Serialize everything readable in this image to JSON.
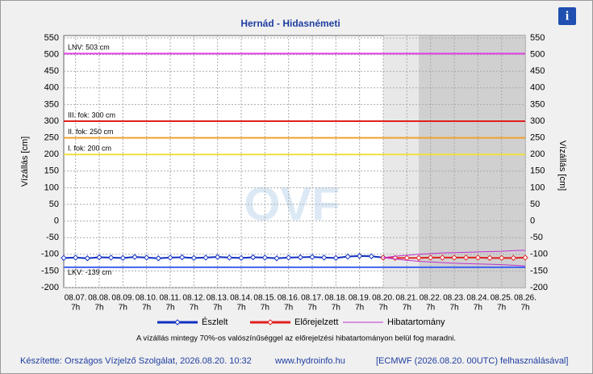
{
  "chart_data": {
    "type": "line",
    "title": "Hernád - Hidasnémeti",
    "y_label": "Vízállás [cm]",
    "ylim": [
      -200,
      550
    ],
    "yticks": [
      -200,
      -150,
      -100,
      -50,
      0,
      50,
      100,
      150,
      200,
      250,
      300,
      350,
      400,
      450,
      500,
      550
    ],
    "xlim": [
      -0.5,
      19
    ],
    "xticks": [
      0,
      1,
      2,
      3,
      4,
      5,
      6,
      7,
      8,
      9,
      10,
      11,
      12,
      13,
      14,
      15,
      16,
      17,
      18,
      19
    ],
    "x_dates": [
      "08.07.",
      "08.08.",
      "08.09.",
      "08.10.",
      "08.11.",
      "08.12.",
      "08.13.",
      "08.14.",
      "08.15.",
      "08.16.",
      "08.17.",
      "08.18.",
      "08.19.",
      "08.20.",
      "08.21.",
      "08.22.",
      "08.23.",
      "08.24.",
      "08.25.",
      "08.26."
    ],
    "x_hour": "7h",
    "grid": true,
    "shaded_regions": [
      {
        "x": [
          13,
          14.5
        ],
        "color": "#e8e8e8"
      },
      {
        "x": [
          14.5,
          19
        ],
        "color": "#d0d0d0"
      }
    ],
    "thresholds": [
      {
        "label": "LNV: 503 cm",
        "value": 503,
        "color": "#e040e0"
      },
      {
        "label": "III. fok: 300 cm",
        "value": 300,
        "color": "#e02020"
      },
      {
        "label": "II. fok: 250 cm",
        "value": 250,
        "color": "#f0a030"
      },
      {
        "label": "I. fok: 200 cm",
        "value": 200,
        "color": "#f0e040"
      },
      {
        "label": "LKV: -139 cm",
        "value": -139,
        "color": "#4060f0"
      }
    ],
    "series": [
      {
        "name": "Észlelt",
        "color": "#1030c0",
        "x": [
          -0.5,
          0,
          0.5,
          1,
          1.5,
          2,
          2.5,
          3,
          3.5,
          4,
          4.5,
          5,
          5.5,
          6,
          6.5,
          7,
          7.5,
          8,
          8.5,
          9,
          9.5,
          10,
          10.5,
          11,
          11.5,
          12,
          12.5,
          13
        ],
        "values": [
          -111,
          -110,
          -112,
          -109,
          -110,
          -111,
          -108,
          -110,
          -112,
          -110,
          -109,
          -111,
          -110,
          -108,
          -110,
          -111,
          -109,
          -110,
          -112,
          -110,
          -109,
          -108,
          -110,
          -111,
          -107,
          -105,
          -106,
          -110
        ]
      },
      {
        "name": "Előrejelzett",
        "color": "#e02020",
        "x": [
          13,
          13.5,
          14,
          14.5,
          15,
          15.5,
          16,
          16.5,
          17,
          17.5,
          18,
          18.5,
          19
        ],
        "values": [
          -110,
          -111,
          -111,
          -111,
          -110,
          -110,
          -110,
          -110,
          -110,
          -111,
          -111,
          -111,
          -110
        ]
      },
      {
        "name": "Hibatartomány",
        "color": "#c030d0",
        "x": [
          13,
          13.5,
          14,
          14.5,
          15,
          15.5,
          16,
          16.5,
          17,
          17.5,
          18,
          18.5,
          19
        ],
        "values_low": [
          -110,
          -114,
          -118,
          -121,
          -123,
          -125,
          -127,
          -128,
          -129,
          -130,
          -131,
          -133,
          -135
        ],
        "values_high": [
          -110,
          -106,
          -103,
          -100,
          -98,
          -96,
          -95,
          -94,
          -93,
          -92,
          -91,
          -89,
          -88
        ]
      }
    ],
    "watermark": "OVF",
    "note": "A vízállás mintegy 70%-os valószínűséggel az előrejelzési hibatartományon belül fog maradni.",
    "footer": [
      "Készítette: Országos Vízjelző Szolgálat, 2026.08.20. 10:32",
      "www.hydroinfo.hu",
      "[ECMWF (2026.08.20. 00UTC) felhasználásával]"
    ],
    "info_icon": "i"
  }
}
